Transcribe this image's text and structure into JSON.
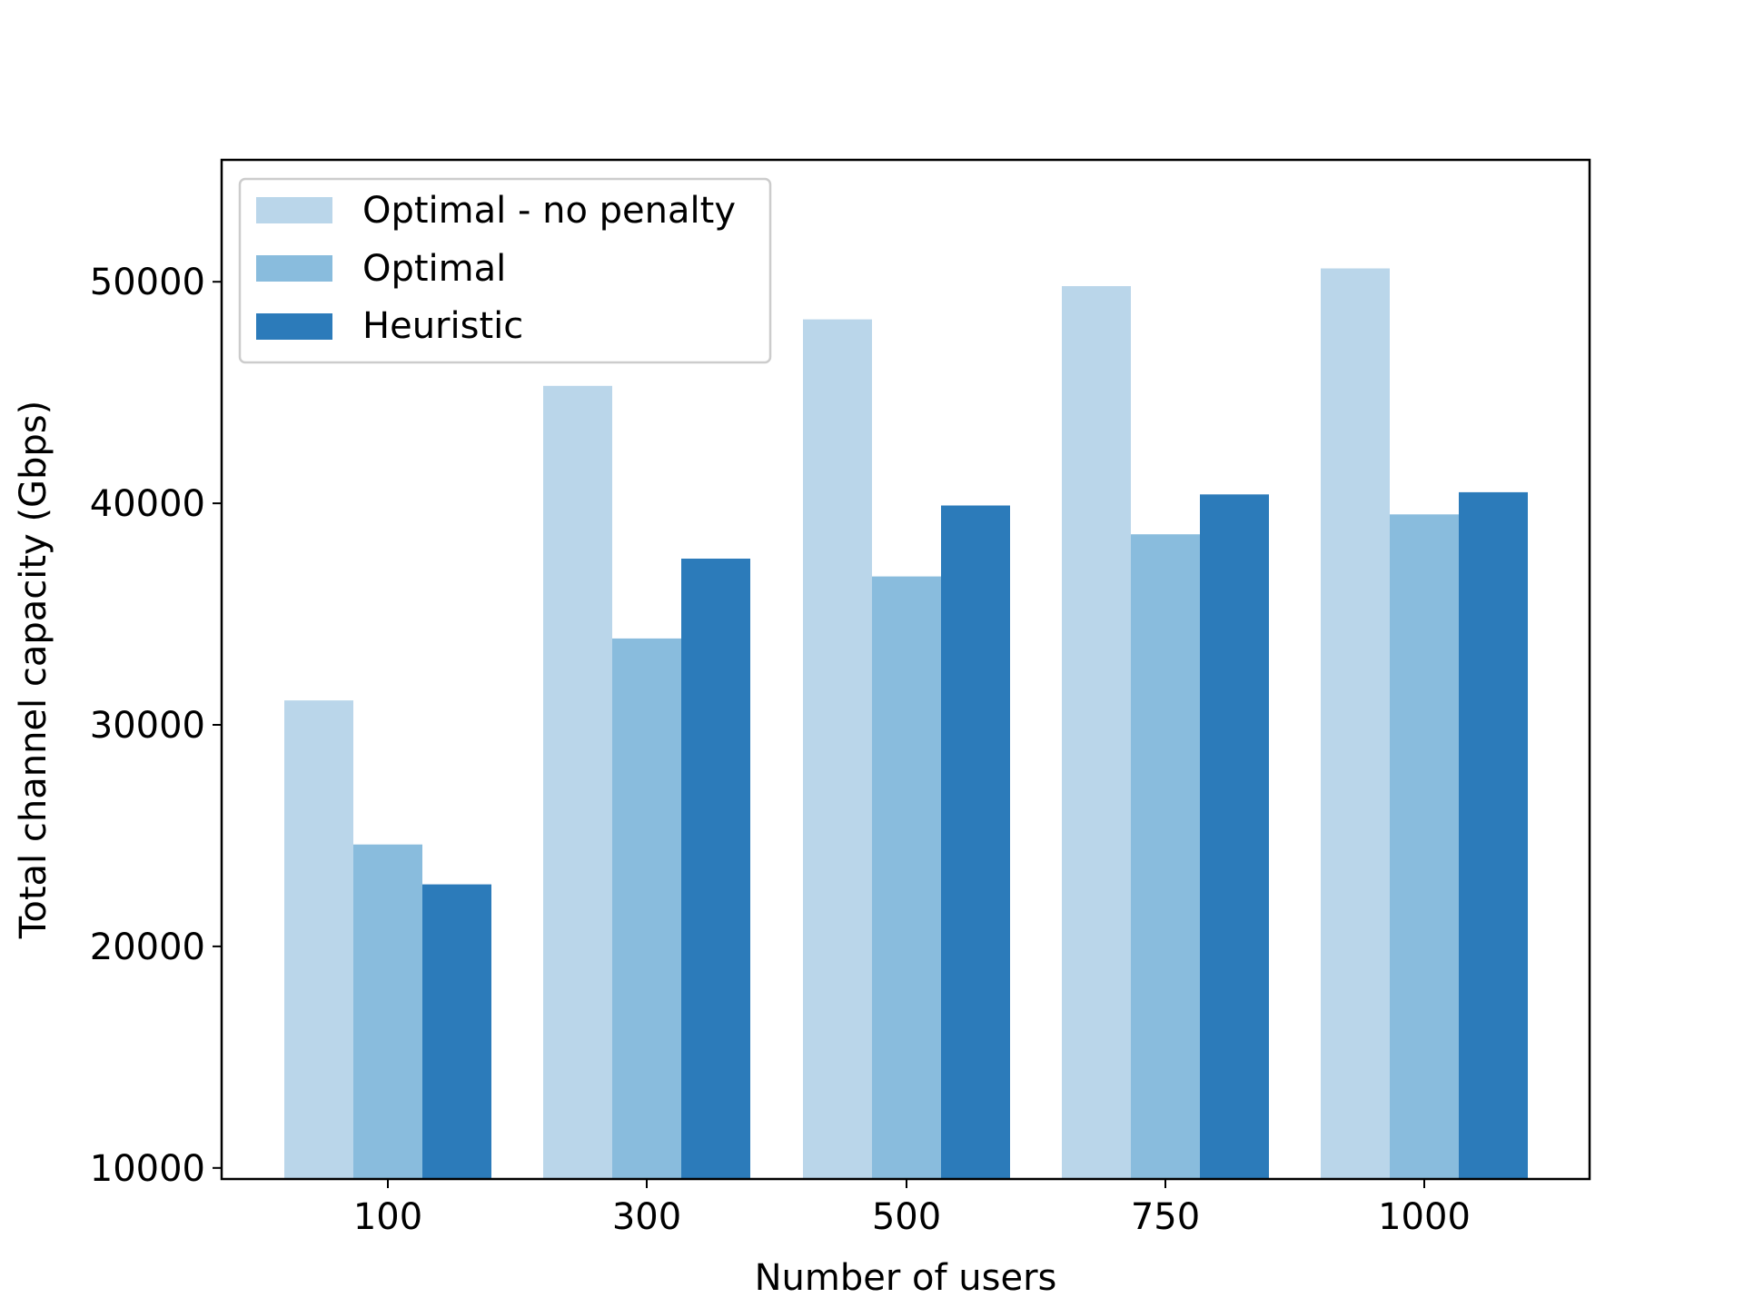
{
  "chart_data": {
    "type": "bar",
    "categories": [
      "100",
      "300",
      "500",
      "750",
      "1000"
    ],
    "series": [
      {
        "name": "Optimal - no penalty",
        "color": "#bad6ea",
        "values": [
          31100,
          45300,
          48300,
          49800,
          50600
        ]
      },
      {
        "name": "Optimal",
        "color": "#89bcdd",
        "values": [
          24600,
          33900,
          36700,
          38600,
          39500
        ]
      },
      {
        "name": "Heuristic",
        "color": "#2c7bba",
        "values": [
          22800,
          37500,
          39900,
          40400,
          40500
        ]
      }
    ],
    "title": "",
    "xlabel": "Number of users",
    "ylabel": "Total channel capacity (Gbps)",
    "ylim": [
      9500,
      55500
    ],
    "yticks": [
      10000,
      20000,
      30000,
      40000,
      50000
    ],
    "grid": false,
    "legend_position": "top-left"
  }
}
